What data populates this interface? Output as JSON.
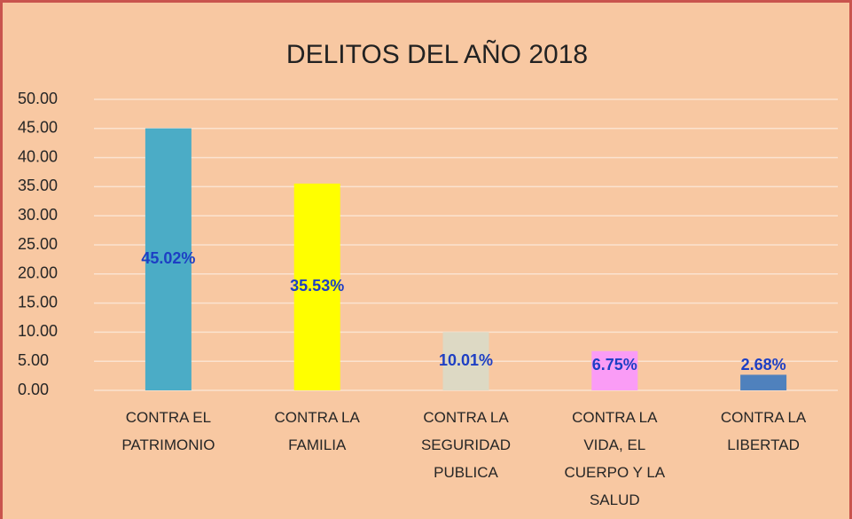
{
  "chart_data": {
    "type": "bar",
    "title": "DELITOS DEL AÑO 2018",
    "categories": [
      "CONTRA EL PATRIMONIO",
      "CONTRA LA FAMILIA",
      "CONTRA LA SEGURIDAD PUBLICA",
      "CONTRA LA VIDA, EL CUERPO Y LA SALUD",
      "CONTRA LA LIBERTAD"
    ],
    "values": [
      45.02,
      35.53,
      10.01,
      6.75,
      2.68
    ],
    "value_labels": [
      "45.02%",
      "35.53%",
      "10.01%",
      "6.75%",
      "2.68%"
    ],
    "colors": [
      "#4bacc6",
      "#ffff00",
      "#ddd9c4",
      "#fa9cf6",
      "#4f81bd"
    ],
    "ylim": [
      0,
      50
    ],
    "yticks": [
      {
        "value": 0,
        "label": "0.00"
      },
      {
        "value": 5,
        "label": "5.00"
      },
      {
        "value": 10,
        "label": "10.00"
      },
      {
        "value": 15,
        "label": "15.00"
      },
      {
        "value": 20,
        "label": "20.00"
      },
      {
        "value": 25,
        "label": "25.00"
      },
      {
        "value": 30,
        "label": "30.00"
      },
      {
        "value": 35,
        "label": "35.00"
      },
      {
        "value": 40,
        "label": "40.00"
      },
      {
        "value": 45,
        "label": "45.00"
      },
      {
        "value": 50,
        "label": "50.00"
      }
    ],
    "grid": true
  }
}
